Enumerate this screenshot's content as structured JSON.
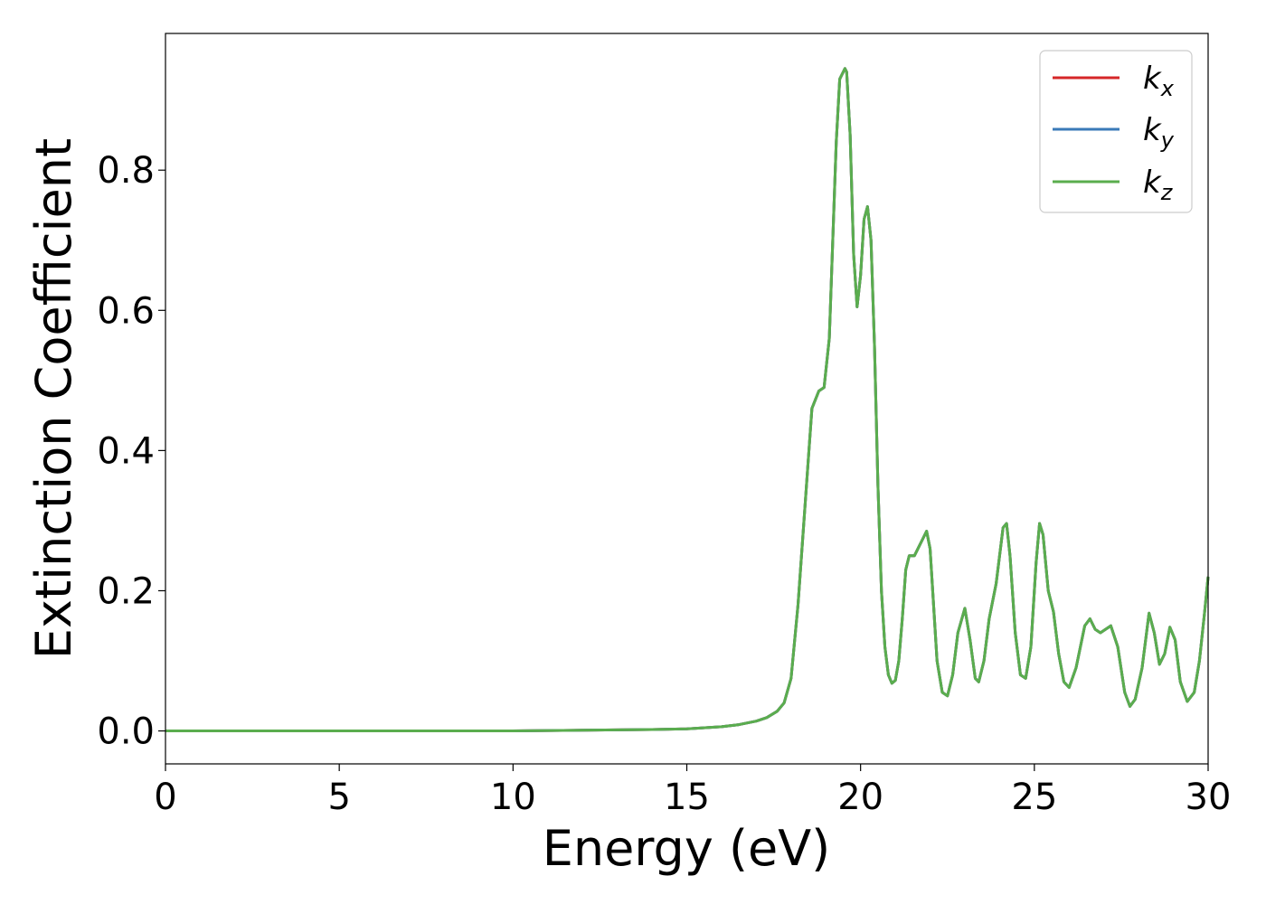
{
  "chart_data": {
    "type": "line",
    "xlabel": "Energy (eV)",
    "ylabel": "Extinction Coefficient",
    "xlim": [
      0,
      30
    ],
    "ylim": [
      -0.047,
      0.995
    ],
    "xticks": [
      0,
      5,
      10,
      15,
      20,
      25,
      30
    ],
    "xtick_labels": [
      "0",
      "5",
      "10",
      "15",
      "20",
      "25",
      "30"
    ],
    "yticks": [
      0.0,
      0.2,
      0.4,
      0.6,
      0.8
    ],
    "ytick_labels": [
      "0.0",
      "0.2",
      "0.4",
      "0.6",
      "0.8"
    ],
    "grid": false,
    "legend_position": "top-right",
    "series": [
      {
        "name": "k",
        "subscript": "x",
        "color": "#d62728"
      },
      {
        "name": "k",
        "subscript": "y",
        "color": "#3a7ab8"
      },
      {
        "name": "k",
        "subscript": "z",
        "color": "#5aad4e"
      }
    ],
    "x": [
      0,
      5,
      10,
      12,
      14,
      15,
      16,
      16.5,
      17,
      17.3,
      17.6,
      17.8,
      18.0,
      18.2,
      18.4,
      18.6,
      18.8,
      18.95,
      19.1,
      19.2,
      19.3,
      19.4,
      19.5,
      19.55,
      19.6,
      19.7,
      19.8,
      19.9,
      20.0,
      20.1,
      20.2,
      20.3,
      20.4,
      20.5,
      20.6,
      20.7,
      20.8,
      20.9,
      21.0,
      21.1,
      21.2,
      21.3,
      21.4,
      21.55,
      21.7,
      21.9,
      22.0,
      22.1,
      22.2,
      22.35,
      22.5,
      22.65,
      22.8,
      23.0,
      23.15,
      23.3,
      23.4,
      23.55,
      23.7,
      23.9,
      24.1,
      24.2,
      24.3,
      24.45,
      24.6,
      24.75,
      24.9,
      25.05,
      25.15,
      25.25,
      25.4,
      25.55,
      25.7,
      25.85,
      26.0,
      26.2,
      26.45,
      26.6,
      26.75,
      26.9,
      27.05,
      27.2,
      27.4,
      27.6,
      27.75,
      27.9,
      28.1,
      28.3,
      28.45,
      28.6,
      28.75,
      28.9,
      29.05,
      29.2,
      29.4,
      29.6,
      29.75,
      29.9,
      30.0
    ],
    "values": [
      0.0,
      0.0,
      0.0,
      0.001,
      0.002,
      0.003,
      0.006,
      0.009,
      0.014,
      0.019,
      0.028,
      0.04,
      0.075,
      0.18,
      0.32,
      0.46,
      0.485,
      0.49,
      0.56,
      0.7,
      0.84,
      0.93,
      0.94,
      0.945,
      0.94,
      0.85,
      0.68,
      0.605,
      0.65,
      0.73,
      0.748,
      0.7,
      0.55,
      0.35,
      0.2,
      0.12,
      0.08,
      0.068,
      0.072,
      0.1,
      0.16,
      0.23,
      0.25,
      0.25,
      0.265,
      0.285,
      0.26,
      0.18,
      0.1,
      0.055,
      0.05,
      0.08,
      0.14,
      0.175,
      0.13,
      0.075,
      0.07,
      0.1,
      0.16,
      0.21,
      0.29,
      0.296,
      0.25,
      0.14,
      0.08,
      0.075,
      0.12,
      0.24,
      0.296,
      0.28,
      0.2,
      0.17,
      0.11,
      0.07,
      0.062,
      0.09,
      0.15,
      0.16,
      0.145,
      0.14,
      0.145,
      0.15,
      0.12,
      0.055,
      0.035,
      0.045,
      0.09,
      0.168,
      0.14,
      0.095,
      0.11,
      0.148,
      0.13,
      0.07,
      0.042,
      0.055,
      0.1,
      0.17,
      0.22
    ]
  }
}
